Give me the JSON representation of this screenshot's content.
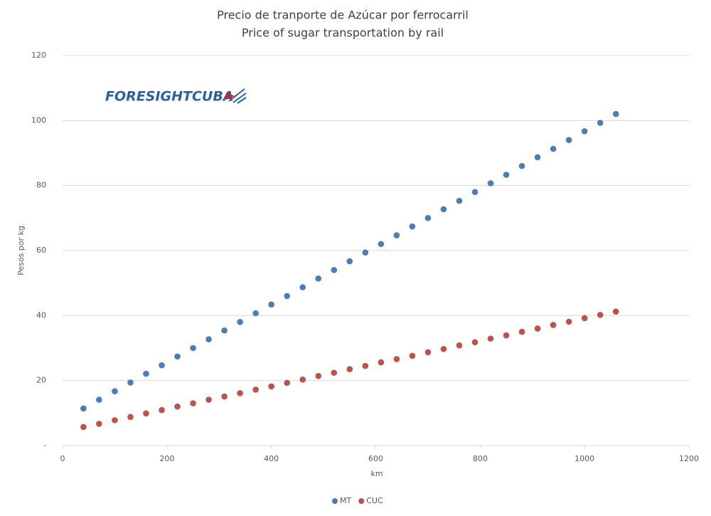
{
  "chart_data": {
    "type": "scatter",
    "title": "Precio de tranporte de Azúcar por ferrocarril",
    "subtitle": "Price of sugar transportation by rail",
    "logo": "FORESIGHTCUBA",
    "x_label": "km",
    "y_label": "Pesos por kg",
    "x": [
      40,
      70,
      100,
      130,
      160,
      190,
      220,
      250,
      280,
      310,
      340,
      370,
      400,
      430,
      460,
      490,
      520,
      550,
      580,
      610,
      640,
      670,
      700,
      730,
      760,
      790,
      820,
      850,
      880,
      910,
      940,
      970,
      1000,
      1030,
      1060
    ],
    "series": [
      {
        "name": "MT",
        "color": "#4a7ebb",
        "values": [
          11.4,
          14.1,
          16.7,
          19.4,
          22.1,
          24.7,
          27.4,
          30.0,
          32.7,
          35.4,
          38.0,
          40.7,
          43.4,
          46.0,
          48.7,
          51.4,
          54.0,
          56.7,
          59.4,
          62.0,
          64.7,
          67.4,
          70.0,
          72.7,
          75.3,
          78.0,
          80.7,
          83.3,
          86.0,
          88.7,
          91.3,
          94.0,
          96.7,
          99.3,
          102.0
        ]
      },
      {
        "name": "CUC",
        "color": "#c0504d",
        "values": [
          5.7,
          6.7,
          7.8,
          8.8,
          9.9,
          10.9,
          12.0,
          13.0,
          14.1,
          15.1,
          16.1,
          17.2,
          18.2,
          19.3,
          20.3,
          21.4,
          22.4,
          23.5,
          24.5,
          25.6,
          26.6,
          27.6,
          28.7,
          29.7,
          30.8,
          31.8,
          32.9,
          33.9,
          35.0,
          36.0,
          37.1,
          38.1,
          39.2,
          40.2,
          41.2
        ]
      }
    ],
    "xlim": [
      0,
      1200
    ],
    "xticks": [
      0,
      200,
      400,
      600,
      800,
      1000,
      1200
    ],
    "ylim": [
      0,
      120
    ],
    "yticks": [
      {
        "value": 0,
        "label": "-"
      },
      20,
      40,
      60,
      80,
      100,
      120
    ],
    "grid": true,
    "legend": "bottom"
  }
}
